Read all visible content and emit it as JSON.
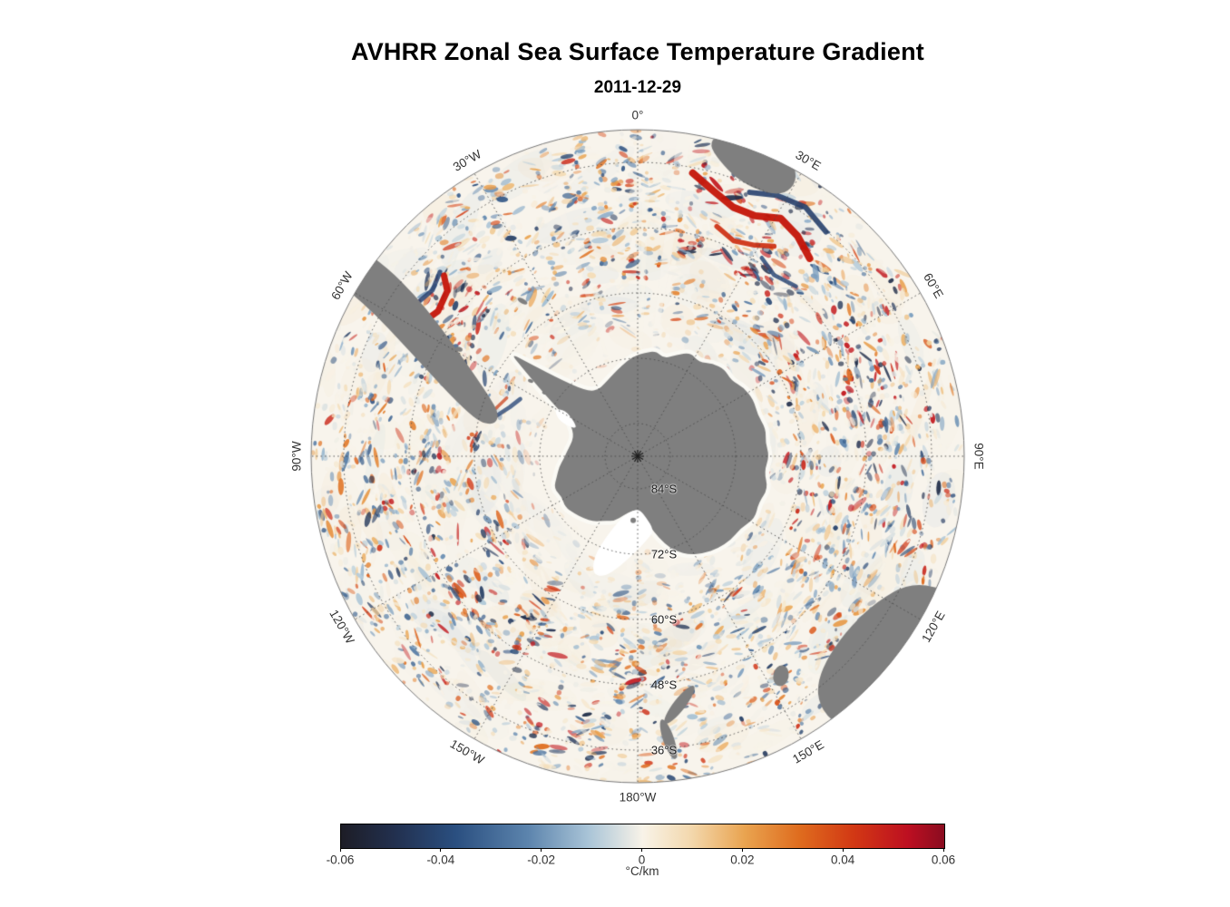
{
  "chart_data": {
    "type": "heatmap",
    "title": "AVHRR Zonal Sea Surface Temperature Gradient",
    "subtitle": "2011-12-29",
    "projection": "south polar azimuthal",
    "grid_style": "dotted",
    "pole_marker": "asterisk",
    "meridian_labels": [
      {
        "label": "0°",
        "azimuth_deg": 0
      },
      {
        "label": "30°E",
        "azimuth_deg": 30
      },
      {
        "label": "60°E",
        "azimuth_deg": 60
      },
      {
        "label": "90°E",
        "azimuth_deg": 90
      },
      {
        "label": "120°E",
        "azimuth_deg": 120
      },
      {
        "label": "150°E",
        "azimuth_deg": 150
      },
      {
        "label": "180°W",
        "azimuth_deg": 180
      },
      {
        "label": "150°W",
        "azimuth_deg": 210
      },
      {
        "label": "120°W",
        "azimuth_deg": 240
      },
      {
        "label": "90°W",
        "azimuth_deg": 270
      },
      {
        "label": "60°W",
        "azimuth_deg": 300
      },
      {
        "label": "30°W",
        "azimuth_deg": 330
      }
    ],
    "latitude_labels": [
      {
        "label": "84°S",
        "lat_deg": -84
      },
      {
        "label": "72°S",
        "lat_deg": -72
      },
      {
        "label": "60°S",
        "lat_deg": -60
      },
      {
        "label": "48°S",
        "lat_deg": -48
      },
      {
        "label": "36°S",
        "lat_deg": -36
      }
    ],
    "colorbar": {
      "label": "°C/km",
      "min": -0.06,
      "max": 0.06,
      "tick_values": [
        -0.06,
        -0.04,
        -0.02,
        0,
        0.02,
        0.04,
        0.06
      ],
      "tick_labels": [
        "-0.06",
        "-0.04",
        "-0.02",
        "0",
        "0.02",
        "0.04",
        "0.06"
      ],
      "stops": [
        {
          "pos": 0.0,
          "color": "#1d1d26"
        },
        {
          "pos": 0.09,
          "color": "#22304f"
        },
        {
          "pos": 0.19,
          "color": "#2a4f80"
        },
        {
          "pos": 0.31,
          "color": "#5c84ad"
        },
        {
          "pos": 0.41,
          "color": "#a9c4d7"
        },
        {
          "pos": 0.5,
          "color": "#f8f3e8"
        },
        {
          "pos": 0.58,
          "color": "#f3d8ad"
        },
        {
          "pos": 0.67,
          "color": "#e9a34f"
        },
        {
          "pos": 0.76,
          "color": "#df6c1e"
        },
        {
          "pos": 0.85,
          "color": "#d23814"
        },
        {
          "pos": 0.94,
          "color": "#bd0f21"
        },
        {
          "pos": 1.0,
          "color": "#8a0c20"
        }
      ]
    },
    "colors": {
      "land": "#7f7f7f",
      "ocean": "#f8f4ec",
      "ice_shelf": "#ffffff",
      "graticule": "#4a4a4a",
      "outer_ring": "#777777"
    },
    "land_masses": [
      "Antarctica",
      "South America",
      "Africa",
      "Australia",
      "Tasmania",
      "New Zealand"
    ]
  }
}
